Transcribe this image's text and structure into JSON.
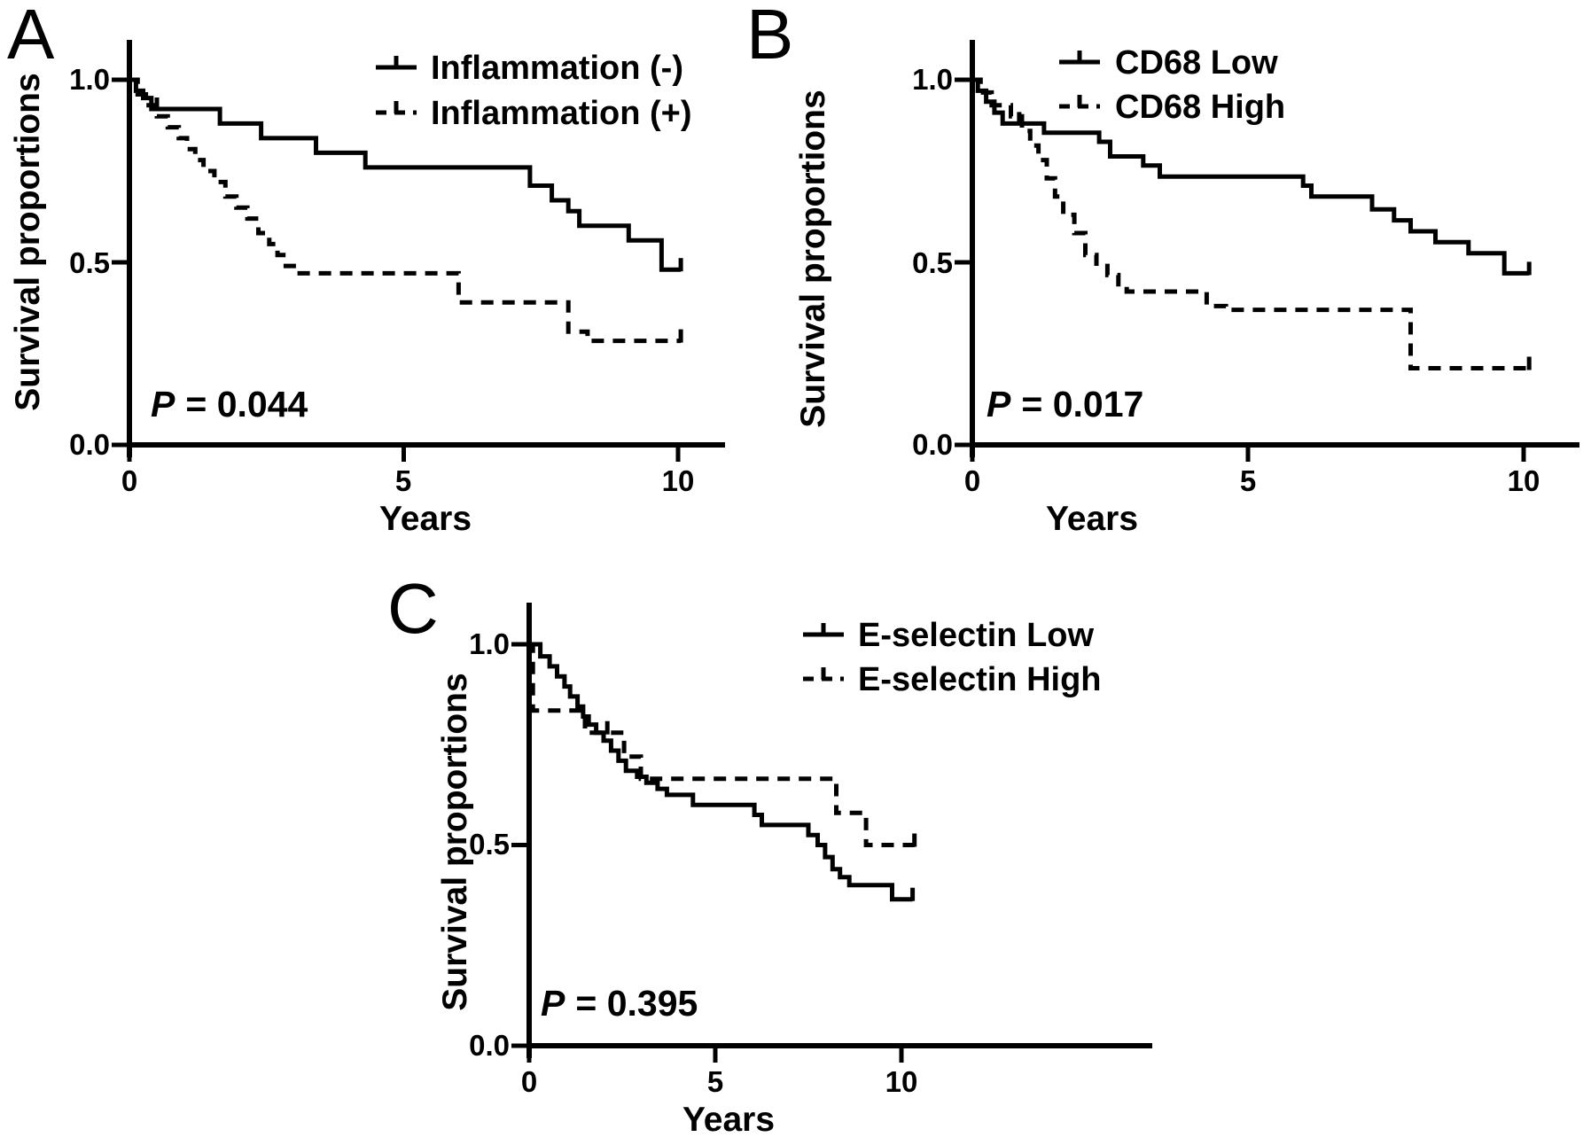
{
  "figure": {
    "background_color": "#ffffff",
    "ink_color": "#000000",
    "description": "Three Kaplan-Meier survival curve panels"
  },
  "chart_data": [
    {
      "panel_label": "A",
      "type": "line",
      "subtype": "kaplan_meier_step",
      "xlabel": "Years",
      "ylabel": "Survival proportions",
      "xlim": [
        0,
        10.9
      ],
      "ylim": [
        0,
        1.12
      ],
      "grid": false,
      "legend_position": "top-right",
      "xtick_values": [
        0,
        5,
        10
      ],
      "xtick_labels": [
        "0",
        "5",
        "10"
      ],
      "ytick_values": [
        1.0,
        0.5,
        0.0
      ],
      "ytick_labels": [
        "1.0",
        "0.5",
        "0.0"
      ],
      "p_value": {
        "symbol": "P",
        "rest": "= 0.044"
      },
      "series": [
        {
          "name": "Inflammation (-)",
          "style": "solid",
          "steps": [
            [
              0,
              1.0
            ],
            [
              0.12,
              0.97
            ],
            [
              0.25,
              0.95
            ],
            [
              0.4,
              0.92
            ],
            [
              1.65,
              0.88
            ],
            [
              2.4,
              0.84
            ],
            [
              3.4,
              0.8
            ],
            [
              4.3,
              0.76
            ],
            [
              7.3,
              0.71
            ],
            [
              7.7,
              0.67
            ],
            [
              8.0,
              0.64
            ],
            [
              8.2,
              0.6
            ],
            [
              9.1,
              0.56
            ],
            [
              9.7,
              0.48
            ]
          ],
          "x_end": 10.05,
          "end_censor_tick": true,
          "censor_ticks": [
            [
              0.5,
              0.92
            ]
          ]
        },
        {
          "name": "Inflammation (+)",
          "style": "dashed",
          "steps": [
            [
              0,
              1.0
            ],
            [
              0.15,
              0.96
            ],
            [
              0.3,
              0.93
            ],
            [
              0.5,
              0.9
            ],
            [
              0.7,
              0.87
            ],
            [
              0.9,
              0.84
            ],
            [
              1.05,
              0.81
            ],
            [
              1.2,
              0.78
            ],
            [
              1.35,
              0.75
            ],
            [
              1.55,
              0.72
            ],
            [
              1.75,
              0.68
            ],
            [
              1.95,
              0.65
            ],
            [
              2.15,
              0.62
            ],
            [
              2.35,
              0.58
            ],
            [
              2.55,
              0.55
            ],
            [
              2.7,
              0.52
            ],
            [
              2.85,
              0.49
            ],
            [
              3.05,
              0.47
            ],
            [
              6.0,
              0.39
            ],
            [
              8.0,
              0.31
            ],
            [
              8.35,
              0.285
            ]
          ],
          "x_end": 10.05,
          "end_censor_tick": true,
          "censor_ticks": []
        }
      ]
    },
    {
      "panel_label": "B",
      "type": "line",
      "subtype": "kaplan_meier_step",
      "xlabel": "Years",
      "ylabel": "Survival proportions",
      "xlim": [
        0,
        11.0
      ],
      "ylim": [
        0,
        1.12
      ],
      "grid": false,
      "legend_position": "top-right",
      "xtick_values": [
        0,
        5,
        10
      ],
      "xtick_labels": [
        "0",
        "5",
        "10"
      ],
      "ytick_values": [
        1.0,
        0.5,
        0.0
      ],
      "ytick_labels": [
        "1.0",
        "0.5",
        "0.0"
      ],
      "p_value": {
        "symbol": "P",
        "rest": "= 0.017"
      },
      "series": [
        {
          "name": "CD68 Low",
          "style": "solid",
          "steps": [
            [
              0,
              1.0
            ],
            [
              0.1,
              0.97
            ],
            [
              0.25,
              0.94
            ],
            [
              0.4,
              0.91
            ],
            [
              0.55,
              0.88
            ],
            [
              1.3,
              0.855
            ],
            [
              2.3,
              0.83
            ],
            [
              2.5,
              0.79
            ],
            [
              3.1,
              0.765
            ],
            [
              3.4,
              0.735
            ],
            [
              6.0,
              0.71
            ],
            [
              6.15,
              0.68
            ],
            [
              7.25,
              0.645
            ],
            [
              7.65,
              0.615
            ],
            [
              7.95,
              0.585
            ],
            [
              8.4,
              0.555
            ],
            [
              9.0,
              0.525
            ],
            [
              9.65,
              0.47
            ]
          ],
          "x_end": 10.1,
          "end_censor_tick": true,
          "censor_ticks": [
            [
              0.85,
              0.88
            ]
          ]
        },
        {
          "name": "CD68 High",
          "style": "dashed",
          "steps": [
            [
              0,
              1.0
            ],
            [
              0.15,
              0.965
            ],
            [
              0.35,
              0.93
            ],
            [
              0.7,
              0.9
            ],
            [
              0.9,
              0.86
            ],
            [
              1.05,
              0.82
            ],
            [
              1.2,
              0.78
            ],
            [
              1.35,
              0.73
            ],
            [
              1.5,
              0.68
            ],
            [
              1.65,
              0.63
            ],
            [
              1.85,
              0.58
            ],
            [
              2.05,
              0.52
            ],
            [
              2.25,
              0.49
            ],
            [
              2.45,
              0.465
            ],
            [
              2.65,
              0.44
            ],
            [
              2.8,
              0.42
            ],
            [
              4.25,
              0.38
            ],
            [
              4.6,
              0.37
            ],
            [
              7.95,
              0.21
            ]
          ],
          "x_end": 10.1,
          "end_censor_tick": true,
          "censor_ticks": []
        }
      ]
    },
    {
      "panel_label": "C",
      "type": "line",
      "subtype": "kaplan_meier_step",
      "xlabel": "Years",
      "ylabel": "Survival proportions",
      "xlim": [
        0,
        16.8
      ],
      "ylim": [
        0,
        1.12
      ],
      "grid": false,
      "legend_position": "top-right",
      "xtick_values": [
        0,
        5,
        10
      ],
      "xtick_labels": [
        "0",
        "5",
        "10"
      ],
      "ytick_values": [
        1.0,
        0.5,
        0.0
      ],
      "ytick_labels": [
        "1.0",
        "0.5",
        "0.0"
      ],
      "p_value": {
        "symbol": "P",
        "rest": "= 0.395"
      },
      "series": [
        {
          "name": "E-selectin Low",
          "style": "solid",
          "steps": [
            [
              0,
              1.0
            ],
            [
              0.3,
              0.97
            ],
            [
              0.55,
              0.945
            ],
            [
              0.75,
              0.92
            ],
            [
              0.95,
              0.895
            ],
            [
              1.1,
              0.87
            ],
            [
              1.3,
              0.845
            ],
            [
              1.45,
              0.82
            ],
            [
              1.6,
              0.8
            ],
            [
              1.8,
              0.78
            ],
            [
              2.0,
              0.76
            ],
            [
              2.2,
              0.735
            ],
            [
              2.4,
              0.71
            ],
            [
              2.6,
              0.685
            ],
            [
              2.9,
              0.67
            ],
            [
              3.15,
              0.655
            ],
            [
              3.45,
              0.64
            ],
            [
              3.7,
              0.625
            ],
            [
              4.4,
              0.6
            ],
            [
              6.05,
              0.575
            ],
            [
              6.25,
              0.55
            ],
            [
              7.5,
              0.525
            ],
            [
              7.75,
              0.5
            ],
            [
              7.95,
              0.47
            ],
            [
              8.15,
              0.44
            ],
            [
              8.35,
              0.42
            ],
            [
              8.6,
              0.4
            ],
            [
              9.75,
              0.365
            ]
          ],
          "x_end": 10.3,
          "end_censor_tick": true,
          "censor_ticks": []
        },
        {
          "name": "E-selectin High",
          "style": "dashed",
          "steps": [
            [
              0,
              1.0
            ],
            [
              0.1,
              0.835
            ],
            [
              1.5,
              0.78
            ],
            [
              2.55,
              0.72
            ],
            [
              3.0,
              0.665
            ],
            [
              8.25,
              0.58
            ],
            [
              9.05,
              0.5
            ]
          ],
          "x_end": 10.35,
          "end_censor_tick": true,
          "censor_ticks": [
            [
              2.1,
              0.78
            ]
          ]
        }
      ]
    }
  ]
}
